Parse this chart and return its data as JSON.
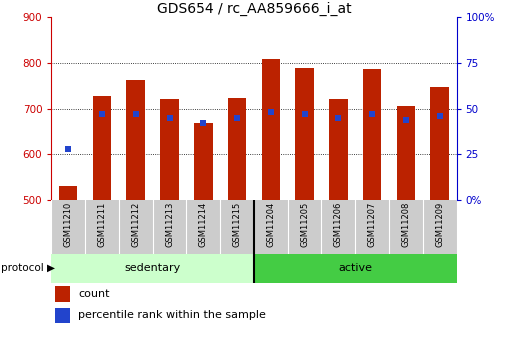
{
  "title": "GDS654 / rc_AA859666_i_at",
  "samples": [
    "GSM11210",
    "GSM11211",
    "GSM11212",
    "GSM11213",
    "GSM11214",
    "GSM11215",
    "GSM11204",
    "GSM11205",
    "GSM11206",
    "GSM11207",
    "GSM11208",
    "GSM11209"
  ],
  "count_values": [
    530,
    727,
    762,
    722,
    668,
    724,
    808,
    788,
    722,
    787,
    706,
    748
  ],
  "percentile_values": [
    28,
    47,
    47,
    45,
    42,
    45,
    48,
    47,
    45,
    47,
    44,
    46
  ],
  "ylim_left": [
    500,
    900
  ],
  "ylim_right": [
    0,
    100
  ],
  "yticks_left": [
    500,
    600,
    700,
    800,
    900
  ],
  "yticks_right": [
    0,
    25,
    50,
    75,
    100
  ],
  "yticklabels_right": [
    "0%",
    "25",
    "50",
    "75",
    "100%"
  ],
  "bar_color": "#bb2200",
  "dot_color": "#2244cc",
  "sedentary_color": "#ccffcc",
  "active_color": "#44cc44",
  "sedentary_samples": 6,
  "active_samples": 6,
  "protocol_label": "protocol",
  "sedentary_label": "sedentary",
  "active_label": "active",
  "legend_count": "count",
  "legend_percentile": "percentile rank within the sample",
  "bar_width": 0.55,
  "left_tick_color": "#cc0000",
  "right_tick_color": "#0000cc",
  "title_fontsize": 10,
  "label_fontsize": 6,
  "proto_fontsize": 8
}
